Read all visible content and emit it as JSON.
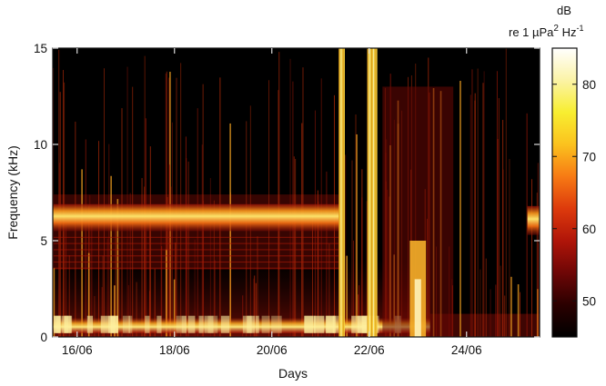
{
  "chart_data": {
    "type": "heatmap",
    "title": "",
    "xlabel": "Days",
    "ylabel": "Frequency (kHz)",
    "x_domain": [
      "15/06 12:00",
      "25/06 12:00"
    ],
    "x_ticks": [
      {
        "value": "16/06",
        "label": "16/06"
      },
      {
        "value": "18/06",
        "label": "18/06"
      },
      {
        "value": "20/06",
        "label": "20/06"
      },
      {
        "value": "22/06",
        "label": "22/06"
      },
      {
        "value": "24/06",
        "label": "24/06"
      }
    ],
    "ylim": [
      0,
      15
    ],
    "y_ticks": [
      0,
      5,
      10,
      15
    ],
    "colorbar": {
      "unit_line1": "dB",
      "unit_line2": "re 1 µPa² Hz⁻¹",
      "unit_main": "re 1 ",
      "unit_mu": "µ",
      "unit_pa": "Pa",
      "unit_sup2": "2",
      "unit_hz": " Hz",
      "unit_supneg1": "-1",
      "range": [
        45,
        85
      ],
      "ticks": [
        50,
        60,
        70,
        80
      ],
      "colormap": [
        "#000000",
        "#2a0000",
        "#6e0606",
        "#b01509",
        "#dd3a0c",
        "#f77a14",
        "#fbc21e",
        "#f8ee30",
        "#fbf3a6",
        "#ffffff"
      ]
    },
    "features": [
      {
        "name": "low-frequency band",
        "freq_khz": [
          0.2,
          1.0
        ],
        "days": [
          "15/06 12:00",
          "23/06 06:00"
        ],
        "level_db": 75
      },
      {
        "name": "mid-frequency band",
        "freq_khz": [
          5.5,
          6.9
        ],
        "days": [
          "15/06 12:00",
          "21/06 10:00"
        ],
        "level_db": 72
      },
      {
        "name": "broadband event",
        "freq_khz": [
          0,
          15
        ],
        "days": [
          "21/06 09:00",
          "21/06 12:00"
        ],
        "level_db": 82
      },
      {
        "name": "broadband event",
        "freq_khz": [
          0,
          15
        ],
        "days": [
          "21/06 23:00",
          "22/06 04:00"
        ],
        "level_db": 83
      },
      {
        "name": "low-frequency burst",
        "freq_khz": [
          0,
          5
        ],
        "days": [
          "22/06 20:00",
          "23/06 04:00"
        ],
        "level_db": 78
      },
      {
        "name": "mid-frequency band",
        "freq_khz": [
          5.3,
          6.8
        ],
        "days": [
          "25/06 06:00",
          "25/06 12:00"
        ],
        "level_db": 70
      }
    ]
  }
}
